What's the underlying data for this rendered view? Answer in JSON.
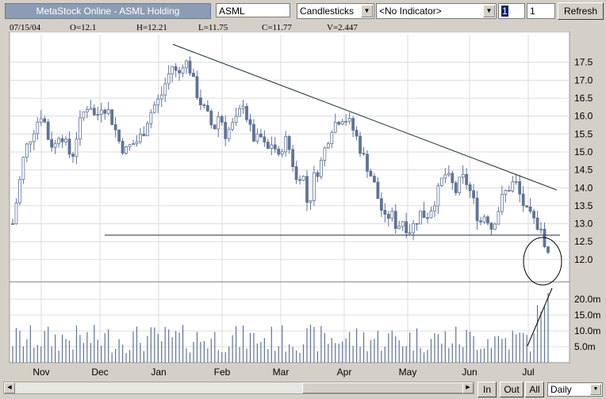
{
  "toolbar": {
    "app_title": "MetaStock Online - ASML Holding",
    "symbol": "ASML",
    "chart_style": "Candlesticks",
    "indicator": "<No Indicator>",
    "field1": "1",
    "field2": "1",
    "refresh_label": "Refresh"
  },
  "ohlc": {
    "date": "07/15/04",
    "open": "O=12.1",
    "high": "H=12.21",
    "low": "L=11.75",
    "close": "C=11.77",
    "volume": "V=2.447"
  },
  "bottom": {
    "in_label": "In",
    "out_label": "Out",
    "all_label": "All",
    "period": "Daily"
  },
  "colors": {
    "candle": "#5f7396",
    "line": "#1e2e3c",
    "grid": "#dcdcdc"
  },
  "chart_data": {
    "type": "candlestick",
    "price_axis_ticks": [
      "12.0",
      "12.5",
      "13.0",
      "13.5",
      "14.0",
      "14.5",
      "15.0",
      "15.5",
      "16.0",
      "16.5",
      "17.0",
      "17.5"
    ],
    "volume_axis_ticks": [
      "5.0m",
      "10.0m",
      "15.0m",
      "20.0m"
    ],
    "month_labels": [
      "Nov",
      "Dec",
      "Jan",
      "Feb",
      "Mar",
      "Apr",
      "May",
      "Jun",
      "Jul"
    ],
    "ylim": [
      11.6,
      18.0
    ],
    "price_path": [
      [
        0,
        13.0
      ],
      [
        5,
        14.0
      ],
      [
        10,
        15.0
      ],
      [
        15,
        15.4
      ],
      [
        20,
        15.8
      ],
      [
        25,
        16.1
      ],
      [
        30,
        15.4
      ],
      [
        35,
        15.1
      ],
      [
        40,
        15.6
      ],
      [
        45,
        15.2
      ],
      [
        50,
        14.8
      ],
      [
        55,
        15.6
      ],
      [
        60,
        16.1
      ],
      [
        65,
        16.4
      ],
      [
        70,
        15.9
      ],
      [
        75,
        16.3
      ],
      [
        80,
        16.2
      ],
      [
        85,
        15.8
      ],
      [
        90,
        15.3
      ],
      [
        95,
        15.0
      ],
      [
        100,
        15.2
      ],
      [
        105,
        15.3
      ],
      [
        110,
        15.5
      ],
      [
        115,
        16.0
      ],
      [
        120,
        16.3
      ],
      [
        125,
        16.5
      ],
      [
        130,
        17.0
      ],
      [
        135,
        17.4
      ],
      [
        140,
        17.1
      ],
      [
        145,
        17.6
      ],
      [
        150,
        17.3
      ],
      [
        155,
        16.7
      ],
      [
        160,
        16.3
      ],
      [
        165,
        16.0
      ],
      [
        170,
        15.6
      ],
      [
        175,
        16.1
      ],
      [
        180,
        15.5
      ],
      [
        185,
        15.7
      ],
      [
        190,
        15.9
      ],
      [
        195,
        16.4
      ],
      [
        200,
        15.7
      ],
      [
        205,
        15.3
      ],
      [
        210,
        15.4
      ],
      [
        215,
        15.0
      ],
      [
        220,
        15.3
      ],
      [
        225,
        14.8
      ],
      [
        230,
        15.4
      ],
      [
        235,
        15.0
      ],
      [
        240,
        14.2
      ],
      [
        245,
        14.5
      ],
      [
        250,
        13.4
      ],
      [
        255,
        14.3
      ],
      [
        260,
        14.6
      ],
      [
        265,
        15.2
      ],
      [
        270,
        15.7
      ],
      [
        275,
        15.9
      ],
      [
        280,
        16.0
      ],
      [
        285,
        15.8
      ],
      [
        290,
        15.5
      ],
      [
        295,
        15.0
      ],
      [
        300,
        14.6
      ],
      [
        305,
        14.2
      ],
      [
        310,
        13.6
      ],
      [
        315,
        13.1
      ],
      [
        320,
        13.3
      ],
      [
        325,
        12.9
      ],
      [
        330,
        13.1
      ],
      [
        335,
        12.8
      ],
      [
        340,
        13.0
      ],
      [
        345,
        13.3
      ],
      [
        350,
        13.2
      ],
      [
        355,
        13.5
      ],
      [
        360,
        13.9
      ],
      [
        365,
        14.4
      ],
      [
        370,
        14.2
      ],
      [
        375,
        13.9
      ],
      [
        380,
        14.3
      ],
      [
        385,
        14.1
      ],
      [
        390,
        13.6
      ],
      [
        395,
        13.0
      ],
      [
        400,
        13.3
      ],
      [
        405,
        12.9
      ],
      [
        410,
        13.3
      ],
      [
        415,
        13.8
      ],
      [
        420,
        14.0
      ],
      [
        425,
        14.2
      ],
      [
        430,
        13.7
      ],
      [
        435,
        13.3
      ],
      [
        440,
        13.1
      ],
      [
        445,
        12.9
      ],
      [
        450,
        12.5
      ],
      [
        455,
        11.9
      ]
    ],
    "annotations": [
      "descending trendline",
      "horizontal support line",
      "circled breakdown",
      "volume spike line"
    ]
  }
}
